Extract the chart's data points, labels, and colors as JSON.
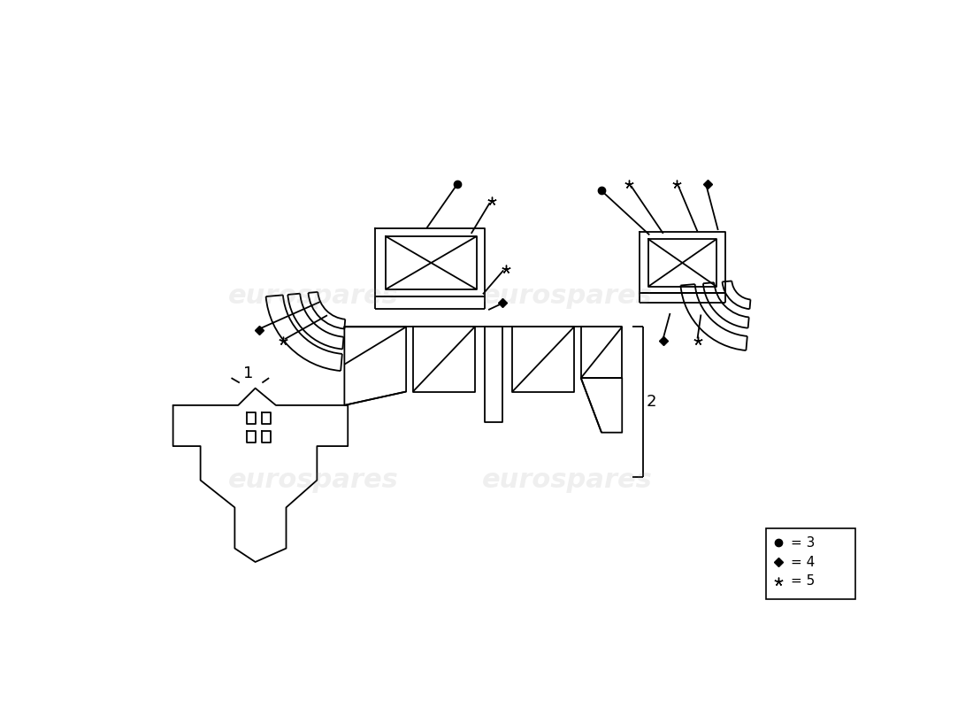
{
  "background_color": "#ffffff",
  "line_color": "#000000",
  "lw": 1.3
}
